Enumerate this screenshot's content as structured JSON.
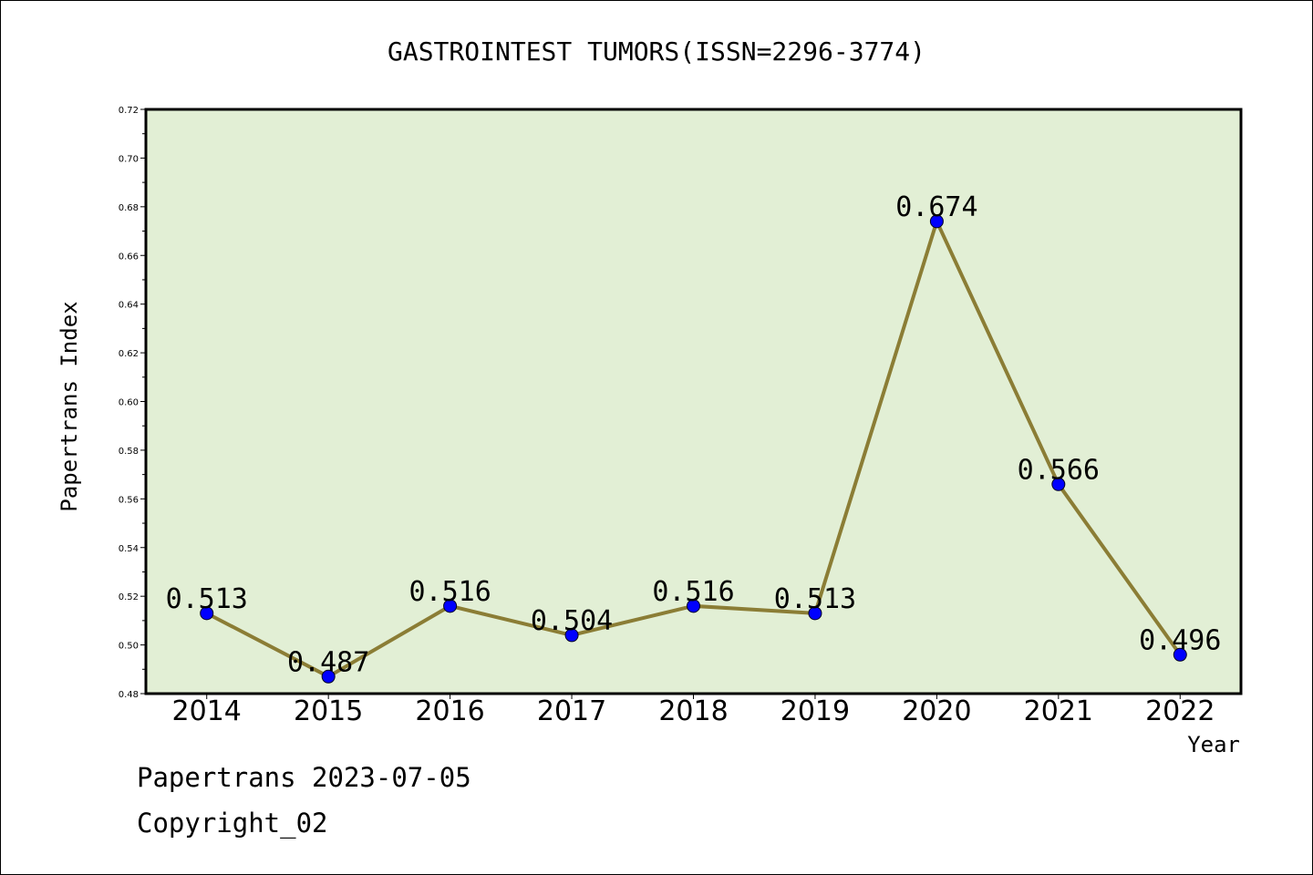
{
  "chart_data": {
    "type": "line",
    "title": "GASTROINTEST TUMORS(ISSN=2296-3774)",
    "xlabel": "Year",
    "ylabel": "Papertrans Index",
    "x": [
      "2014",
      "2015",
      "2016",
      "2017",
      "2018",
      "2019",
      "2020",
      "2021",
      "2022"
    ],
    "series": [
      {
        "values": [
          0.513,
          0.487,
          0.516,
          0.504,
          0.516,
          0.513,
          0.674,
          0.566,
          0.496
        ],
        "labels": [
          "0.513",
          "0.487",
          "0.516",
          "0.504",
          "0.516",
          "0.513",
          "0.674",
          "0.566",
          "0.496"
        ]
      }
    ],
    "ylim": [
      0.48,
      0.72
    ],
    "yticks": [
      "0.48",
      "0.50",
      "0.52",
      "0.54",
      "0.56",
      "0.58",
      "0.60",
      "0.62",
      "0.64",
      "0.66",
      "0.68",
      "0.70",
      "0.72"
    ],
    "grid": false,
    "colors": {
      "plot_background": "#e2efd5",
      "line": "#8b7d35",
      "marker": "#0000ff"
    }
  },
  "footer": {
    "line1": "Papertrans 2023-07-05",
    "line2": "Copyright_02"
  }
}
